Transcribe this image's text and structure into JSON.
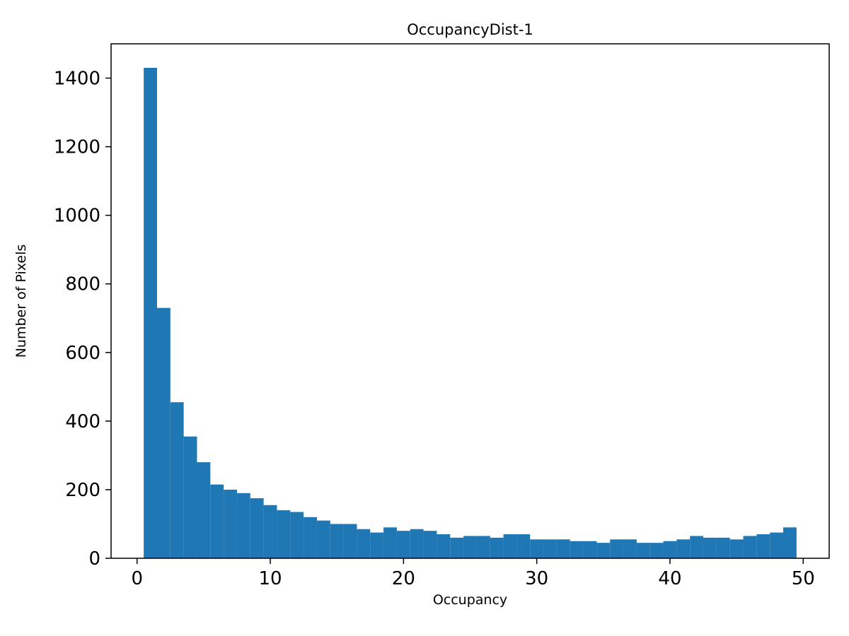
{
  "chart_data": {
    "type": "bar",
    "subtype": "histogram",
    "title": "OccupancyDist-1",
    "xlabel": "Occupancy",
    "ylabel": "Number of Pixels",
    "bar_color": "#1f77b4",
    "background_color": "#ffffff",
    "grid": false,
    "legend_position": "none",
    "bin_start": 0.5,
    "bin_width": 1,
    "bin_centers": [
      1,
      2,
      3,
      4,
      5,
      6,
      7,
      8,
      9,
      10,
      11,
      12,
      13,
      14,
      15,
      16,
      17,
      18,
      19,
      20,
      21,
      22,
      23,
      24,
      25,
      26,
      27,
      28,
      29,
      30,
      31,
      32,
      33,
      34,
      35,
      36,
      37,
      38,
      39,
      40,
      41,
      42,
      43,
      44,
      45,
      46,
      47,
      48,
      49
    ],
    "values": [
      1430,
      730,
      455,
      355,
      280,
      215,
      200,
      190,
      175,
      155,
      140,
      135,
      120,
      110,
      100,
      100,
      85,
      75,
      90,
      80,
      85,
      80,
      70,
      60,
      65,
      65,
      60,
      70,
      70,
      55,
      55,
      55,
      50,
      50,
      45,
      55,
      55,
      45,
      45,
      50,
      55,
      65,
      60,
      60,
      55,
      65,
      70,
      75,
      90
    ],
    "xlim": [
      -1.95,
      51.95
    ],
    "ylim": [
      0,
      1500
    ],
    "xticks": [
      0,
      10,
      20,
      30,
      40,
      50
    ],
    "yticks": [
      0,
      200,
      400,
      600,
      800,
      1000,
      1200,
      1400
    ]
  }
}
